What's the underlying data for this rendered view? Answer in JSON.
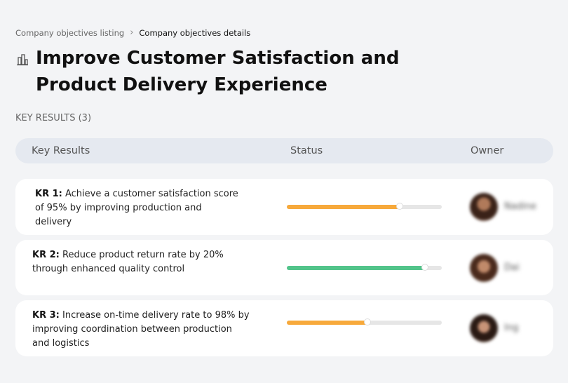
{
  "breadcrumb": {
    "items": [
      "Company objectives listing",
      "Company objectives details"
    ]
  },
  "header": {
    "title": "Improve Customer Satisfaction and Product Delivery Experience"
  },
  "section": {
    "label": "KEY RESULTS (3)"
  },
  "table": {
    "columns": [
      "Key Results",
      "Status",
      "Owner"
    ],
    "rows": [
      {
        "id": "KR 1:",
        "text": "Achieve a customer satisfaction score of 95% by improving production and delivery",
        "progress": 73,
        "color": "#f7a93b",
        "owner": "Nadine"
      },
      {
        "id": "KR 2:",
        "text": "Reduce product return rate by 20% through enhanced quality control",
        "progress": 89,
        "color": "#52c48a",
        "owner": "Dai"
      },
      {
        "id": "KR 3:",
        "text": "Increase on-time delivery rate to 98% by improving coordination between production and logistics",
        "progress": 52,
        "color": "#f7a93b",
        "owner": "Ing"
      }
    ]
  }
}
